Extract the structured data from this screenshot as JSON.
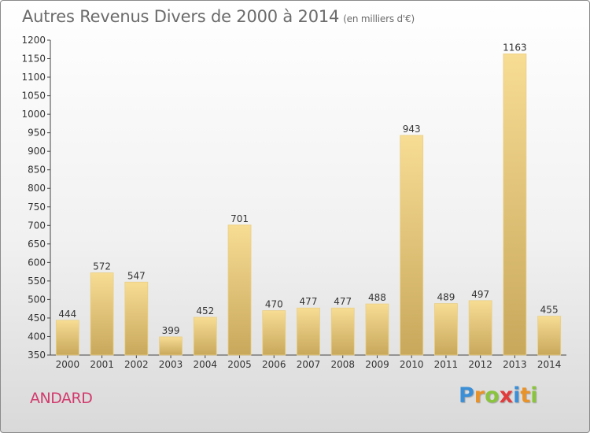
{
  "title": "Autres Revenus Divers de 2000 à 2014",
  "subtitle": "(en milliers d'€)",
  "commune": "ANDARD",
  "logo": {
    "letters": [
      "P",
      "r",
      "o",
      "x",
      "i",
      "t",
      "i"
    ],
    "colors": [
      "#3b8fd6",
      "#e8932a",
      "#8ac43f",
      "#e23b3b",
      "#3b8fd6",
      "#e8932a",
      "#8ac43f"
    ]
  },
  "colors": {
    "commune": "#d23a6e",
    "bar_light": "#f7dc94",
    "bar_dark": "#c8a85b"
  },
  "chart_data": {
    "type": "bar",
    "categories": [
      "2000",
      "2001",
      "2002",
      "2003",
      "2004",
      "2005",
      "2006",
      "2007",
      "2008",
      "2009",
      "2010",
      "2011",
      "2012",
      "2013",
      "2014"
    ],
    "values": [
      444,
      572,
      547,
      399,
      452,
      701,
      470,
      477,
      477,
      488,
      943,
      489,
      497,
      1163,
      455
    ],
    "ylim": [
      350,
      1200
    ],
    "yticks": [
      350,
      400,
      450,
      500,
      550,
      600,
      650,
      700,
      750,
      800,
      850,
      900,
      950,
      1000,
      1050,
      1100,
      1150,
      1200
    ],
    "grid": false,
    "data_labels": true
  }
}
